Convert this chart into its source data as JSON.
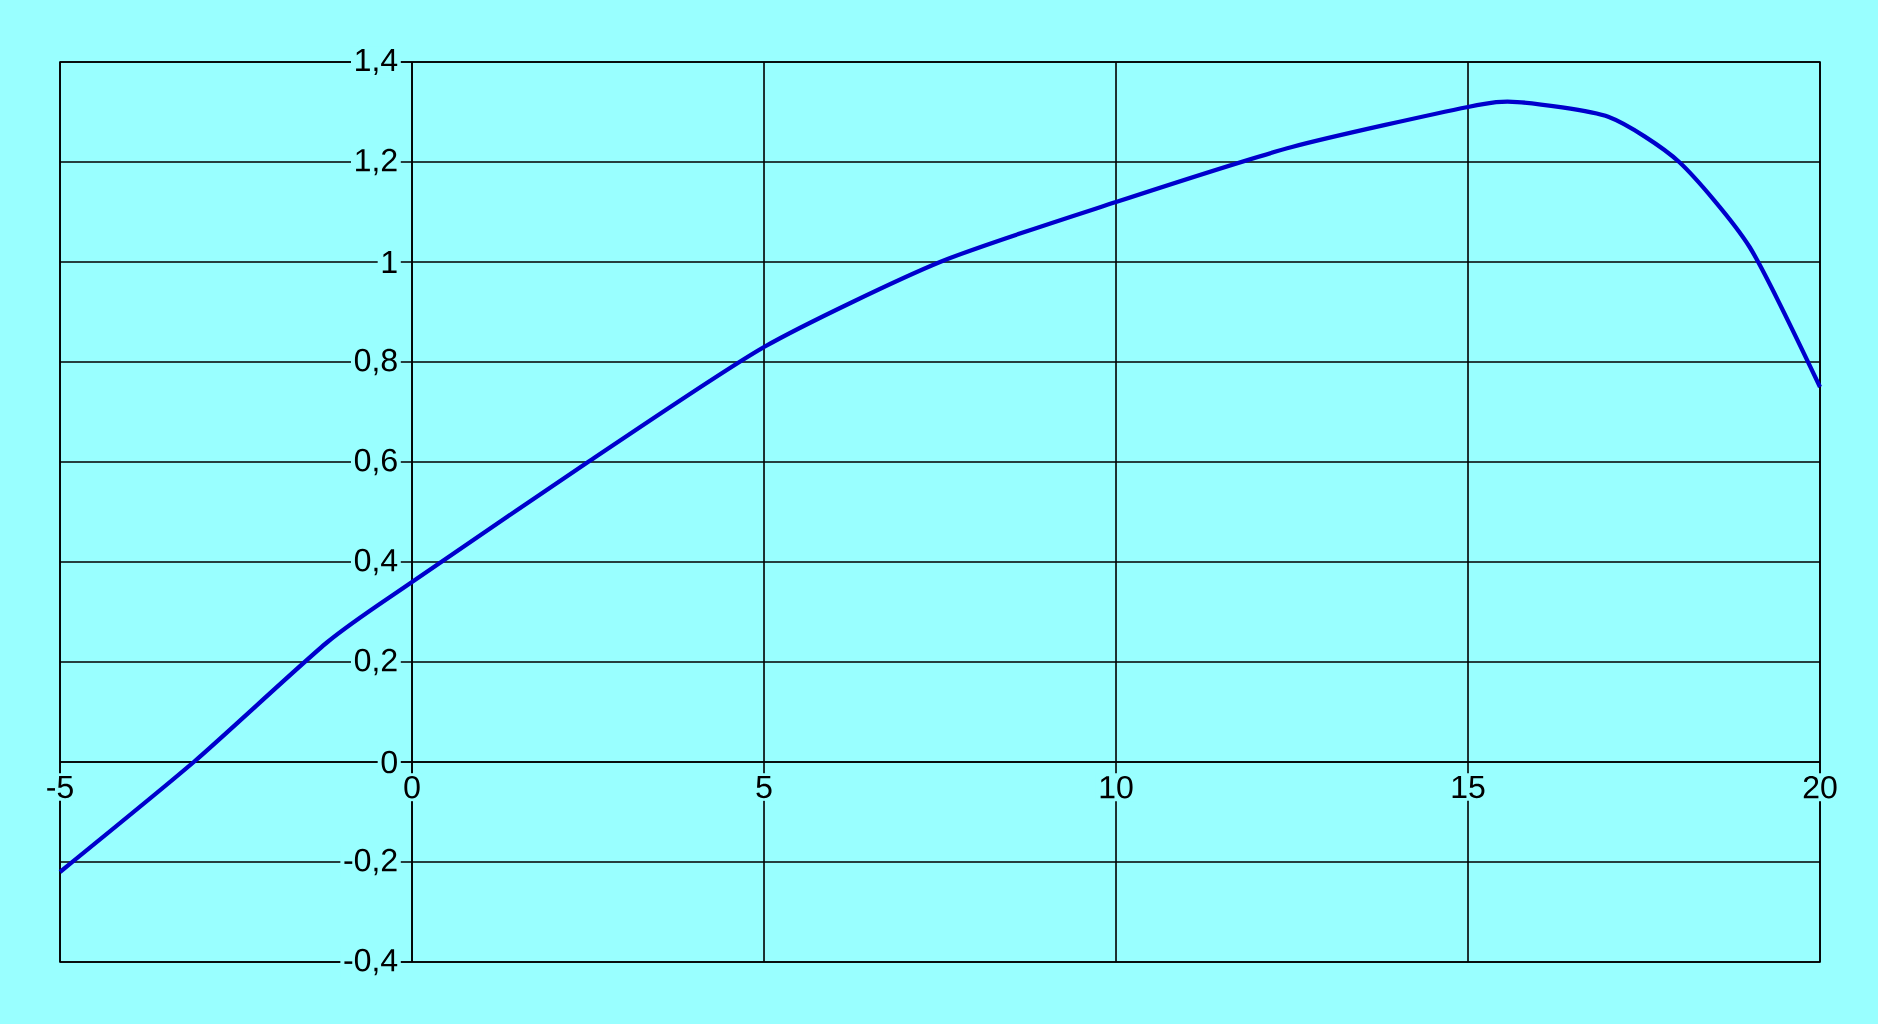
{
  "chart_data": {
    "type": "line",
    "x": [
      -5,
      -3.1,
      -1.2,
      0,
      2.5,
      5,
      7.5,
      10,
      12.5,
      15,
      15.7,
      17,
      18,
      19,
      20
    ],
    "values": [
      -0.22,
      0,
      0.24,
      0.36,
      0.6,
      0.83,
      1.0,
      1.12,
      1.23,
      1.31,
      1.32,
      1.29,
      1.2,
      1.03,
      0.75
    ],
    "color": "#0000cc",
    "xlim": [
      -5,
      20
    ],
    "ylim": [
      -0.4,
      1.4
    ],
    "xticks": [
      -5,
      0,
      5,
      10,
      15,
      20
    ],
    "yticks": [
      {
        "value": -0.4,
        "label": "-0,4"
      },
      {
        "value": -0.2,
        "label": "-0,2"
      },
      {
        "value": 0,
        "label": "0"
      },
      {
        "value": 0.2,
        "label": "0,2"
      },
      {
        "value": 0.4,
        "label": "0,4"
      },
      {
        "value": 0.6,
        "label": "0,6"
      },
      {
        "value": 0.8,
        "label": "0,8"
      },
      {
        "value": 1,
        "label": "1"
      },
      {
        "value": 1.2,
        "label": "1,2"
      },
      {
        "value": 1.4,
        "label": "1,4"
      }
    ],
    "grid": true
  }
}
